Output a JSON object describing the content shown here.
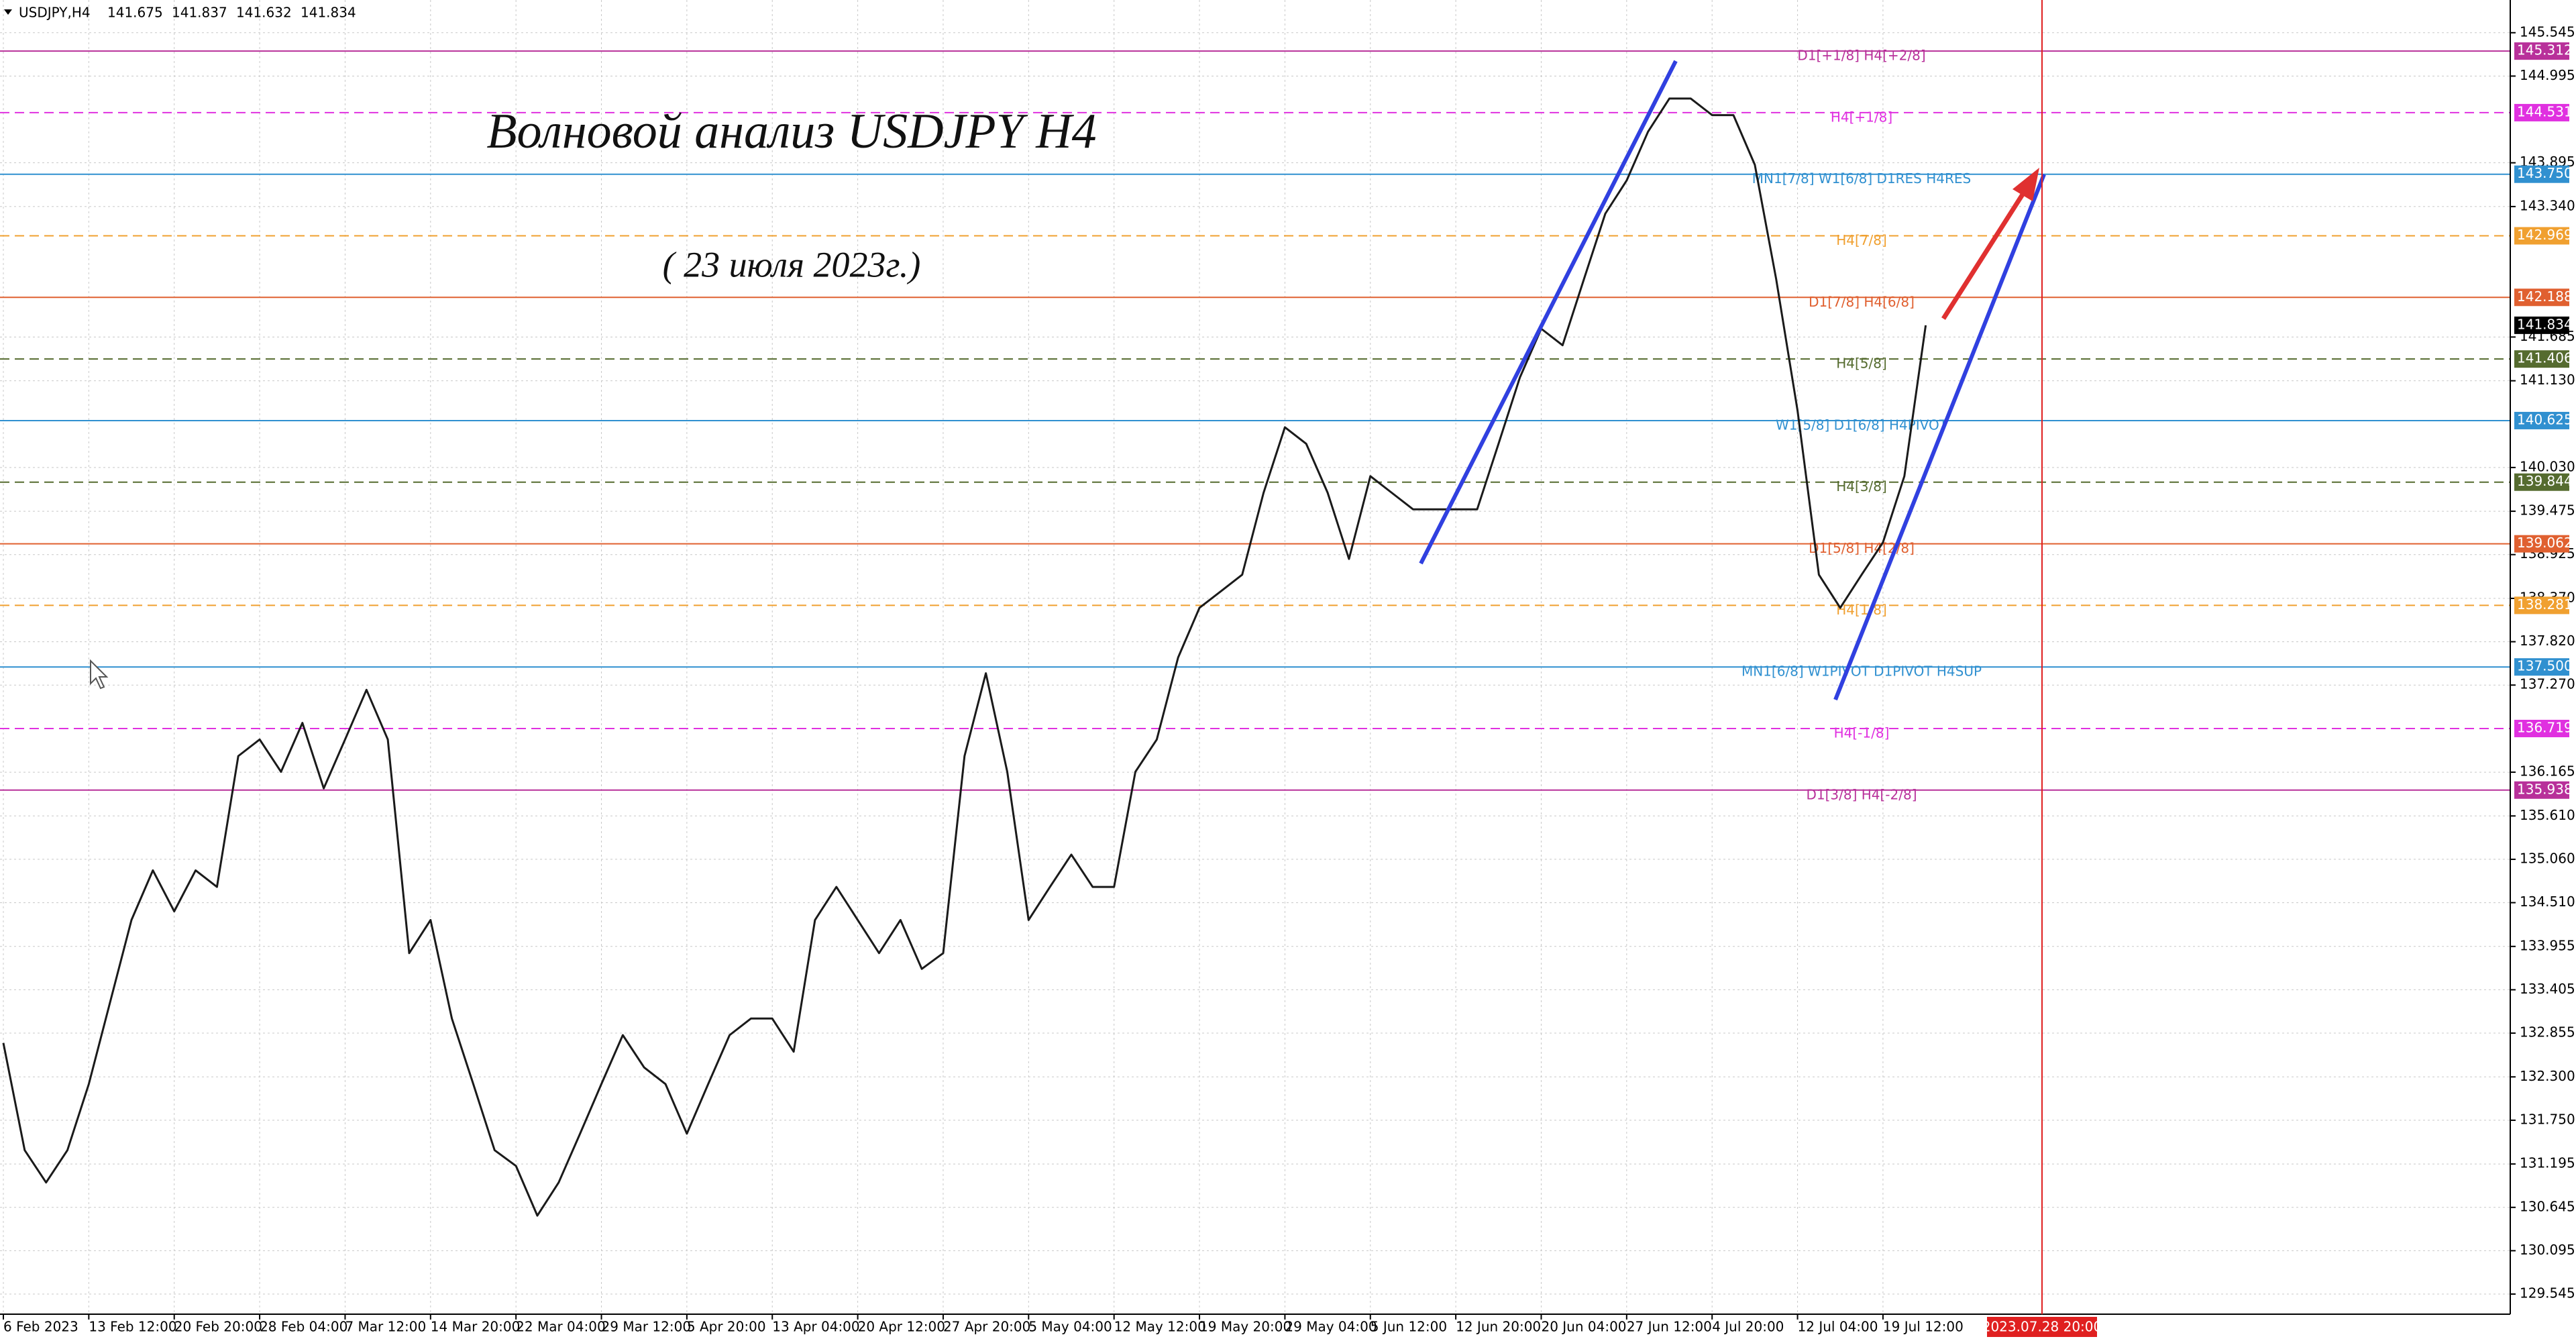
{
  "chart_data": {
    "type": "line",
    "symbol": "USDJPY,H4",
    "ohlc": [
      141.675,
      141.837,
      141.632,
      141.834
    ],
    "title": "Волновой анализ USDJPY H4",
    "subtitle": "( 23 июля 2023г.)",
    "categories": [
      "6 Feb 2023",
      null,
      null,
      null,
      "13 Feb 12:00",
      null,
      null,
      null,
      "20 Feb 20:00",
      null,
      null,
      null,
      "28 Feb 04:00",
      null,
      null,
      null,
      "7 Mar 12:00",
      null,
      null,
      null,
      "14 Mar 20:00",
      null,
      null,
      null,
      "22 Mar 04:00",
      null,
      null,
      null,
      "29 Mar 12:00",
      null,
      null,
      null,
      "5 Apr 20:00",
      null,
      null,
      null,
      "13 Apr 04:00",
      null,
      null,
      null,
      "20 Apr 12:00",
      null,
      null,
      null,
      "27 Apr 20:00",
      null,
      null,
      null,
      "5 May 04:00",
      null,
      null,
      null,
      "12 May 12:00",
      null,
      null,
      null,
      "19 May 20:00",
      null,
      null,
      null,
      "29 May 04:00",
      null,
      null,
      null,
      "5 Jun 12:00",
      null,
      null,
      null,
      "12 Jun 20:00",
      null,
      null,
      null,
      "20 Jun 04:00",
      null,
      null,
      null,
      "27 Jun 12:00",
      null,
      null,
      null,
      "4 Jul 20:00",
      null,
      null,
      null,
      "12 Jul 04:00",
      null,
      null,
      null,
      "19 Jul 12:00",
      null,
      null
    ],
    "values": [
      132.73,
      131.37,
      130.96,
      131.37,
      132.21,
      133.25,
      134.29,
      134.92,
      134.4,
      134.92,
      134.71,
      136.37,
      136.58,
      136.17,
      136.79,
      135.96,
      136.58,
      137.21,
      136.58,
      133.87,
      134.29,
      133.04,
      132.21,
      131.37,
      131.17,
      130.54,
      130.96,
      131.58,
      132.21,
      132.83,
      132.42,
      132.21,
      131.58,
      132.21,
      132.83,
      133.04,
      133.04,
      132.62,
      134.29,
      134.71,
      134.29,
      133.87,
      134.29,
      133.67,
      133.87,
      136.37,
      137.42,
      136.17,
      134.29,
      134.71,
      135.12,
      134.71,
      134.71,
      136.17,
      136.58,
      137.62,
      138.25,
      138.46,
      138.67,
      139.71,
      140.54,
      140.33,
      139.71,
      138.87,
      139.92,
      139.71,
      139.5,
      139.5,
      139.5,
      139.5,
      140.33,
      141.17,
      141.79,
      141.58,
      142.42,
      143.25,
      143.67,
      144.29,
      144.71,
      144.71,
      144.5,
      144.5,
      143.87,
      142.42,
      140.75,
      138.67,
      138.25,
      138.67,
      139.08,
      139.92,
      141.834
    ],
    "color": "#1a1a1a",
    "ylim": [
      129.29,
      145.96
    ],
    "yticks": [
      145.545,
      144.995,
      143.895,
      {
        "value": 143.34,
        "label": "143.340"
      },
      141.685,
      {
        "value": 141.13,
        "label": "141.130"
      },
      {
        "value": 140.03,
        "label": "140.030"
      },
      139.475,
      138.925,
      {
        "value": 138.37,
        "label": "138.370"
      },
      {
        "value": 137.82,
        "label": "137.820"
      },
      {
        "value": 137.27,
        "label": "137.270"
      },
      136.165,
      {
        "value": 135.61,
        "label": "135.610"
      },
      {
        "value": 135.06,
        "label": "135.060"
      },
      {
        "value": 134.51,
        "label": "134.510"
      },
      133.955,
      133.405,
      132.855,
      {
        "value": 132.3,
        "label": "132.300"
      },
      {
        "value": 131.75,
        "label": "131.750"
      },
      131.195,
      130.645,
      130.095,
      129.545
    ],
    "grid": true,
    "levels": [
      {
        "value": 145.312,
        "value_label": "145.312",
        "name": "D1[+1/8] H4[+2/8]",
        "color": "#b8309a",
        "dashed": false
      },
      {
        "value": 144.531,
        "value_label": "144.531",
        "name": "H4[+1/8]",
        "color": "#e030e0",
        "dashed": true
      },
      {
        "value": 143.75,
        "value_label": "143.750",
        "name": "MN1[7/8] W1[6/8] D1RES H4RES",
        "color": "#3090d0",
        "dashed": false
      },
      {
        "value": 142.969,
        "value_label": "142.969",
        "name": "H4[7/8]",
        "color": "#f0a030",
        "dashed": true
      },
      {
        "value": 142.188,
        "value_label": "142.188",
        "name": "D1[7/8] H4[6/8]",
        "color": "#e06030",
        "dashed": false
      },
      {
        "value": 141.406,
        "value_label": "141.406",
        "name": "H4[5/8]",
        "color": "#556b2f",
        "dashed": true
      },
      {
        "value": 140.625,
        "value_label": "140.625",
        "name": "W1[5/8] D1[6/8] H4PIVOT",
        "color": "#3090d0",
        "dashed": false
      },
      {
        "value": 139.844,
        "value_label": "139.844",
        "name": "H4[3/8]",
        "color": "#556b2f",
        "dashed": true
      },
      {
        "value": 139.062,
        "value_label": "139.062",
        "name": "D1[5/8] H4[2/8]",
        "color": "#e06030",
        "dashed": false
      },
      {
        "value": 138.281,
        "value_label": "138.281",
        "name": "H4[1/8]",
        "color": "#f0a030",
        "dashed": true
      },
      {
        "value": 137.5,
        "value_label": "137.500",
        "name": "MN1[6/8] W1PIVOT D1PIVOT H4SUP",
        "color": "#3090d0",
        "dashed": false
      },
      {
        "value": 136.719,
        "value_label": "136.719",
        "name": "H4[-1/8]",
        "color": "#e030e0",
        "dashed": true
      },
      {
        "value": 135.938,
        "value_label": "135.938",
        "name": "D1[3/8] H4[-2/8]",
        "color": "#b8309a",
        "dashed": false
      }
    ],
    "last_price": 141.834,
    "cursor_time": "2023.07.28 20:00",
    "cursor_color": "#e02020"
  }
}
